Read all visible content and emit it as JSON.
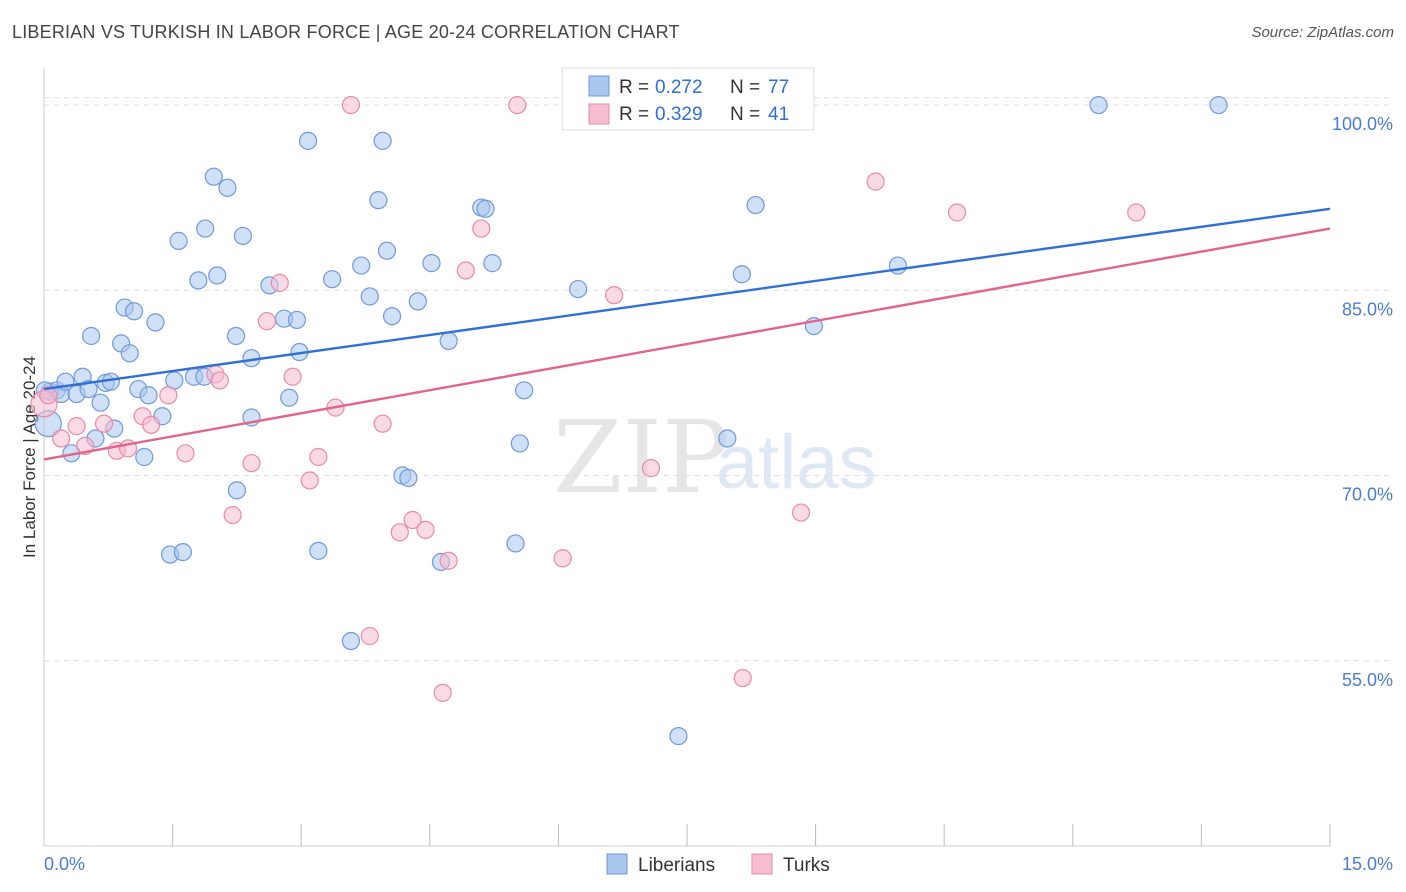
{
  "header": {
    "title": "LIBERIAN VS TURKISH IN LABOR FORCE | AGE 20-24 CORRELATION CHART",
    "source": "Source: ZipAtlas.com"
  },
  "watermark": {
    "zip": "ZIP",
    "atlas": "atlas"
  },
  "colors": {
    "blue_fill": "#a9c6ef",
    "blue_stroke": "#6f9ad8",
    "blue_line": "#2f6fd6",
    "pink_fill": "#f6bccf",
    "pink_stroke": "#e88aaa",
    "pink_line": "#e2648c",
    "tick_text": "#4a7ccc",
    "grid": "#dddddd"
  },
  "legend": {
    "rows": [
      {
        "r_label": "R = ",
        "r_value": "0.272",
        "n_label": "N = ",
        "n_value": "77"
      },
      {
        "r_label": "R = ",
        "r_value": "0.329",
        "n_label": "N = ",
        "n_value": "41"
      }
    ],
    "bottom": [
      "Liberians",
      "Turks"
    ]
  },
  "chart_data": {
    "type": "scatter",
    "title": "LIBERIAN VS TURKISH IN LABOR FORCE | AGE 20-24 CORRELATION CHART",
    "xlabel": "",
    "ylabel": "In Labor Force | Age 20-24",
    "xlim": [
      0,
      15
    ],
    "ylim": [
      40,
      103
    ],
    "x_tick_labels": [
      "0.0%",
      "15.0%"
    ],
    "y_ticks": [
      55,
      70,
      85,
      100
    ],
    "y_tick_labels": [
      "55.0%",
      "70.0%",
      "85.0%",
      "100.0%"
    ],
    "grid": true,
    "series": [
      {
        "name": "Liberians",
        "R": 0.272,
        "N": 77,
        "trend": {
          "x": [
            0,
            15
          ],
          "y": [
            77.0,
            91.6
          ]
        },
        "points": [
          [
            0.05,
            74.2
          ],
          [
            0.07,
            76.8
          ],
          [
            0.15,
            76.9
          ],
          [
            0.2,
            76.6
          ],
          [
            0.25,
            77.6
          ],
          [
            0.32,
            71.8
          ],
          [
            0.38,
            76.6
          ],
          [
            0.45,
            78.0
          ],
          [
            0.52,
            77.0
          ],
          [
            0.55,
            81.3
          ],
          [
            0.6,
            73.0
          ],
          [
            0.66,
            75.9
          ],
          [
            0.72,
            77.5
          ],
          [
            0.78,
            77.6
          ],
          [
            0.82,
            73.8
          ],
          [
            0.9,
            80.7
          ],
          [
            0.94,
            83.6
          ],
          [
            1.0,
            79.9
          ],
          [
            1.05,
            83.3
          ],
          [
            1.1,
            77.0
          ],
          [
            1.17,
            71.5
          ],
          [
            1.22,
            76.5
          ],
          [
            1.3,
            82.4
          ],
          [
            1.38,
            74.8
          ],
          [
            1.47,
            63.6
          ],
          [
            1.52,
            77.7
          ],
          [
            1.57,
            89.0
          ],
          [
            1.62,
            63.8
          ],
          [
            1.75,
            78.0
          ],
          [
            1.8,
            85.8
          ],
          [
            1.87,
            78.0
          ],
          [
            1.88,
            90.0
          ],
          [
            1.98,
            94.2
          ],
          [
            2.02,
            86.2
          ],
          [
            2.14,
            93.3
          ],
          [
            2.24,
            81.3
          ],
          [
            2.25,
            68.8
          ],
          [
            2.32,
            89.4
          ],
          [
            2.42,
            79.5
          ],
          [
            2.42,
            74.7
          ],
          [
            2.63,
            85.4
          ],
          [
            2.8,
            82.7
          ],
          [
            2.86,
            76.3
          ],
          [
            2.95,
            82.6
          ],
          [
            2.98,
            80.0
          ],
          [
            3.08,
            97.1
          ],
          [
            3.2,
            63.9
          ],
          [
            3.36,
            85.9
          ],
          [
            3.58,
            56.6
          ],
          [
            3.7,
            87.0
          ],
          [
            3.8,
            84.5
          ],
          [
            3.9,
            92.3
          ],
          [
            3.95,
            97.1
          ],
          [
            4.0,
            88.2
          ],
          [
            4.06,
            82.9
          ],
          [
            4.18,
            70.0
          ],
          [
            4.25,
            69.8
          ],
          [
            4.36,
            84.1
          ],
          [
            4.52,
            87.2
          ],
          [
            4.63,
            63.0
          ],
          [
            4.72,
            80.9
          ],
          [
            5.1,
            91.7
          ],
          [
            5.15,
            91.6
          ],
          [
            5.23,
            87.2
          ],
          [
            5.5,
            64.5
          ],
          [
            5.55,
            72.6
          ],
          [
            5.6,
            76.9
          ],
          [
            6.23,
            85.1
          ],
          [
            7.4,
            48.9
          ],
          [
            7.97,
            73.0
          ],
          [
            8.14,
            86.3
          ],
          [
            8.3,
            91.9
          ],
          [
            8.98,
            82.1
          ],
          [
            9.96,
            87.0
          ],
          [
            12.3,
            100.0
          ],
          [
            13.7,
            100.0
          ],
          [
            0.01,
            76.9
          ]
        ]
      },
      {
        "name": "Turks",
        "R": 0.329,
        "N": 41,
        "trend": {
          "x": [
            0,
            15
          ],
          "y": [
            71.3,
            90.0
          ]
        },
        "points": [
          [
            0.0,
            75.8
          ],
          [
            0.05,
            76.5
          ],
          [
            0.2,
            73.0
          ],
          [
            0.38,
            74.0
          ],
          [
            0.48,
            72.4
          ],
          [
            0.7,
            74.2
          ],
          [
            0.85,
            72.0
          ],
          [
            0.98,
            72.2
          ],
          [
            1.15,
            74.8
          ],
          [
            1.25,
            74.1
          ],
          [
            1.45,
            76.5
          ],
          [
            1.65,
            71.8
          ],
          [
            2.0,
            78.2
          ],
          [
            2.05,
            77.7
          ],
          [
            2.2,
            66.8
          ],
          [
            2.42,
            71.0
          ],
          [
            2.6,
            82.5
          ],
          [
            2.75,
            85.6
          ],
          [
            2.9,
            78.0
          ],
          [
            3.1,
            69.6
          ],
          [
            3.2,
            71.5
          ],
          [
            3.4,
            75.5
          ],
          [
            3.58,
            100.0
          ],
          [
            3.8,
            57.0
          ],
          [
            3.95,
            74.2
          ],
          [
            4.15,
            65.4
          ],
          [
            4.3,
            66.4
          ],
          [
            4.45,
            65.6
          ],
          [
            4.65,
            52.4
          ],
          [
            4.72,
            63.1
          ],
          [
            4.92,
            86.6
          ],
          [
            5.1,
            90.0
          ],
          [
            5.52,
            100.0
          ],
          [
            6.05,
            63.3
          ],
          [
            6.65,
            84.6
          ],
          [
            7.08,
            70.6
          ],
          [
            8.15,
            53.6
          ],
          [
            8.83,
            67.0
          ],
          [
            9.7,
            93.8
          ],
          [
            10.65,
            91.3
          ],
          [
            12.74,
            91.3
          ]
        ]
      }
    ]
  }
}
